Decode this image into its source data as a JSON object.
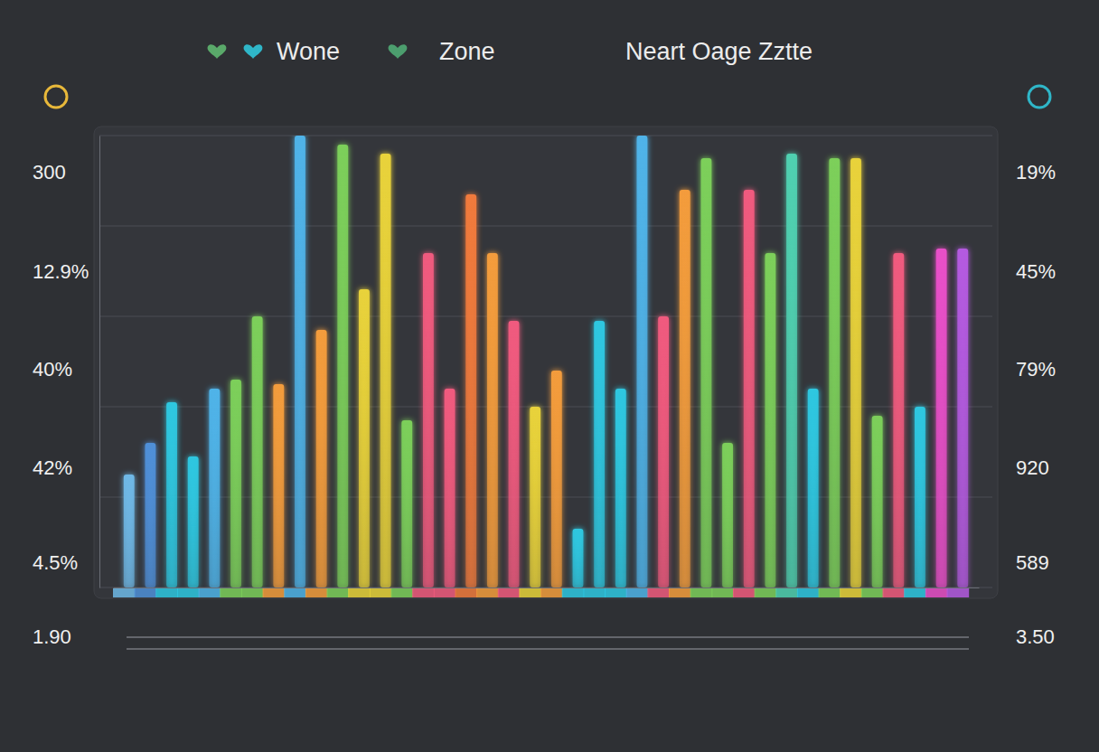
{
  "chart_data": {
    "type": "bar",
    "title": "Neart Oage Zztte",
    "annotations": {
      "top": [
        "Wone",
        "Zone"
      ],
      "left": [
        "300",
        "12.9%",
        "40%",
        "42%",
        "4.5%",
        "1.90"
      ],
      "right": [
        "19%",
        "45%",
        "79%",
        "920",
        "589",
        "3.50"
      ]
    },
    "categories": [
      null,
      null,
      null,
      null,
      null,
      null,
      null,
      null,
      null,
      null,
      null,
      null,
      null,
      null,
      null,
      null,
      null,
      null,
      null,
      null,
      null,
      null,
      null,
      null,
      null,
      null,
      null,
      null,
      null,
      null,
      null,
      null,
      null,
      null,
      null,
      null,
      null,
      null,
      null,
      null
    ],
    "values": [
      25,
      32,
      41,
      29,
      44,
      46,
      60,
      45,
      100,
      57,
      98,
      66,
      96,
      37,
      74,
      44,
      87,
      74,
      59,
      40,
      48,
      13,
      59,
      44,
      100,
      60,
      88,
      95,
      32,
      88,
      74,
      96,
      44,
      95,
      95,
      38,
      74,
      40,
      75,
      75
    ],
    "colors": [
      "#6fb8e6",
      "#4f8fd8",
      "#2ec7e0",
      "#2ec7e0",
      "#4fb3e8",
      "#7ccf5a",
      "#7ccf5a",
      "#f39c3c",
      "#4fb3e8",
      "#f39c3c",
      "#7ccf5a",
      "#e8d23a",
      "#e8d23a",
      "#7ccf5a",
      "#f05a7e",
      "#f05a7e",
      "#f07a3c",
      "#f39c3c",
      "#f05a7e",
      "#e8d23a",
      "#f39c3c",
      "#2ec7e0",
      "#2ec7e0",
      "#2ec7e0",
      "#4fb3e8",
      "#f05a7e",
      "#f39c3c",
      "#7ccf5a",
      "#7ccf5a",
      "#f05a7e",
      "#7ccf5a",
      "#4fd0b0",
      "#2ec7e0",
      "#7ccf5a",
      "#e8d23a",
      "#7ccf5a",
      "#f05a7e",
      "#2ec7e0",
      "#e84fc8",
      "#b45ae0"
    ],
    "ylim": [
      0,
      100
    ],
    "yticks": [
      0,
      20,
      40,
      60,
      80,
      100
    ],
    "grid": true,
    "tick_labels": false
  }
}
